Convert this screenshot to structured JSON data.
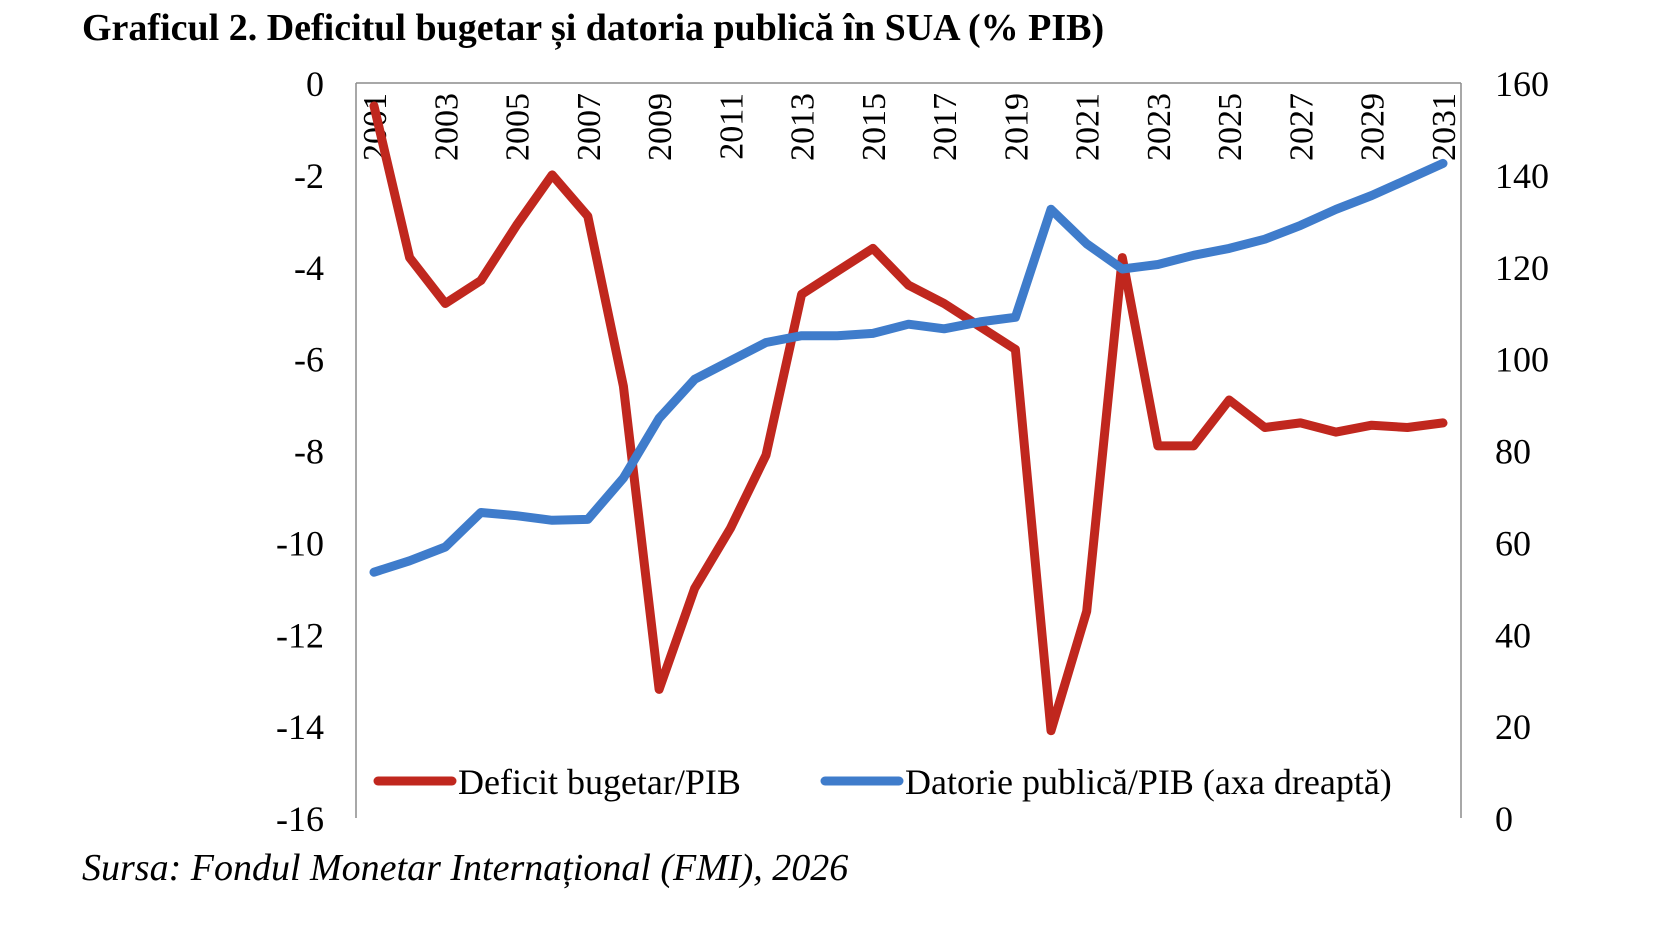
{
  "title": "Graficul 2. Deficitul bugetar și datoria publică în SUA (% PIB)",
  "source": "Sursa: Fondul Monetar Internațional (FMI), 2026",
  "chart_data": {
    "type": "line",
    "title": "Graficul 2. Deficitul bugetar și datoria publică în SUA (% PIB)",
    "x": [
      2001,
      2002,
      2003,
      2004,
      2005,
      2006,
      2007,
      2008,
      2009,
      2010,
      2011,
      2012,
      2013,
      2014,
      2015,
      2016,
      2017,
      2018,
      2019,
      2020,
      2021,
      2022,
      2023,
      2024,
      2025,
      2026,
      2027,
      2028,
      2029,
      2030,
      2031
    ],
    "x_tick_labels": [
      "2001",
      "2003",
      "2005",
      "2007",
      "2009",
      "2011",
      "2013",
      "2015",
      "2017",
      "2019",
      "2021",
      "2023",
      "2025",
      "2027",
      "2029",
      "2031"
    ],
    "y_left": {
      "min": -16,
      "max": 0,
      "ticks": [
        0,
        -2,
        -4,
        -6,
        -8,
        -10,
        -12,
        -14,
        -16
      ]
    },
    "y_right": {
      "min": 0,
      "max": 160,
      "ticks": [
        160,
        140,
        120,
        100,
        80,
        60,
        40,
        20,
        0
      ]
    },
    "grid": false,
    "legend_position": "bottom-inside",
    "series": [
      {
        "name": "Deficit bugetar/PIB",
        "axis": "left",
        "color": "#C0271E",
        "values": [
          -0.5,
          -3.8,
          -4.8,
          -4.3,
          -3.1,
          -2.0,
          -2.9,
          -6.6,
          -13.2,
          -11.0,
          -9.7,
          -8.1,
          -4.6,
          -4.1,
          -3.6,
          -4.4,
          -4.8,
          -5.3,
          -5.8,
          -14.1,
          -11.5,
          -3.8,
          -7.9,
          -7.9,
          -6.9,
          -7.5,
          -7.4,
          -7.6,
          -7.45,
          -7.5,
          -7.4
        ]
      },
      {
        "name": "Datorie publică/PIB (axa dreaptă)",
        "axis": "right",
        "color": "#3F7CCB",
        "values": [
          53.5,
          56,
          59,
          66.5,
          65.8,
          64.8,
          65,
          74,
          87,
          95.5,
          99.5,
          103.5,
          105,
          105,
          105.5,
          107.5,
          106.5,
          108,
          109,
          132.5,
          125,
          119.5,
          120.5,
          122.5,
          124,
          126,
          129,
          132.5,
          135.5,
          139,
          142.5
        ]
      }
    ]
  }
}
